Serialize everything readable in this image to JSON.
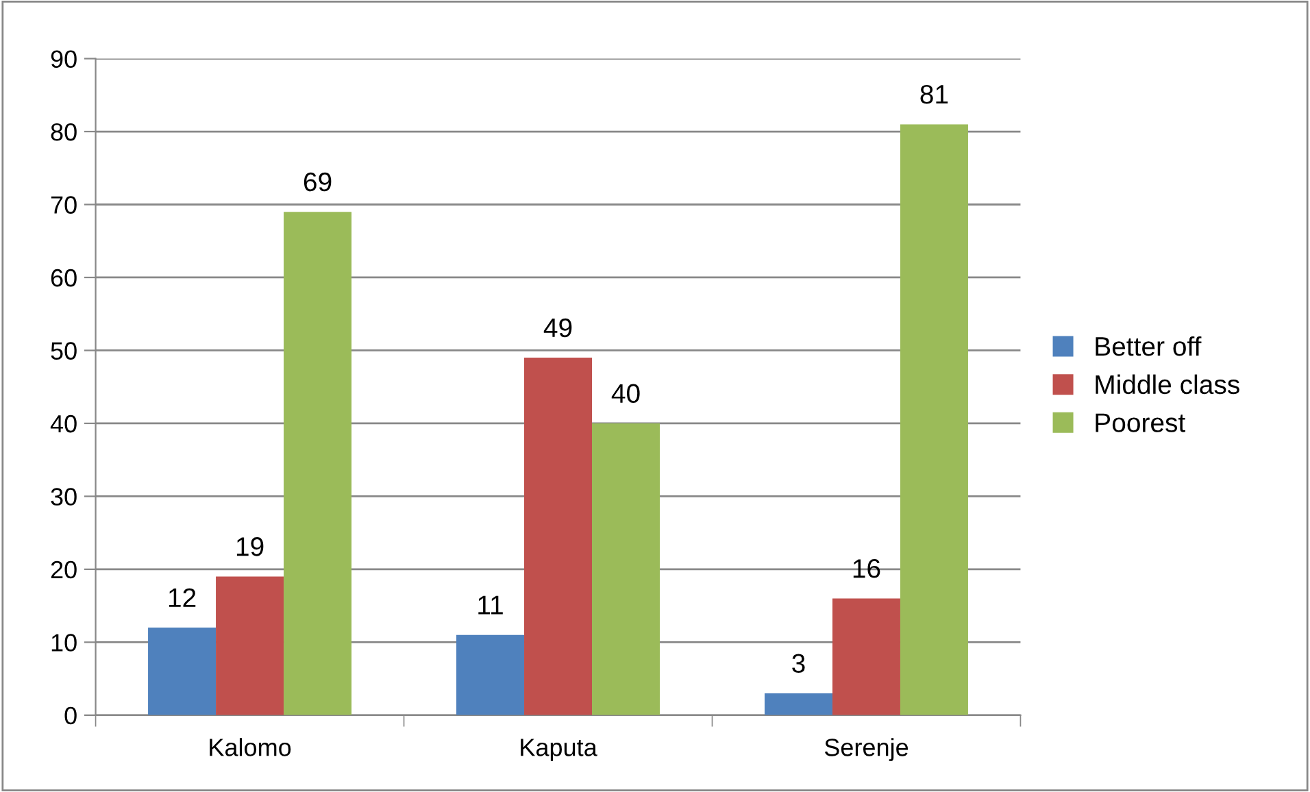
{
  "chart_data": {
    "type": "bar",
    "categories": [
      "Kalomo",
      "Kaputa",
      "Serenje"
    ],
    "series": [
      {
        "name": "Better off",
        "color": "#4f81bd",
        "values": [
          12,
          11,
          3
        ]
      },
      {
        "name": "Middle class",
        "color": "#c0504d",
        "values": [
          19,
          49,
          16
        ]
      },
      {
        "name": "Poorest",
        "color": "#9bbb59",
        "values": [
          69,
          40,
          81
        ]
      }
    ],
    "ylim": [
      0,
      90
    ],
    "yticks": [
      0,
      10,
      20,
      30,
      40,
      50,
      60,
      70,
      80,
      90
    ],
    "grid": "y",
    "legend": "right",
    "data_labels": true
  }
}
